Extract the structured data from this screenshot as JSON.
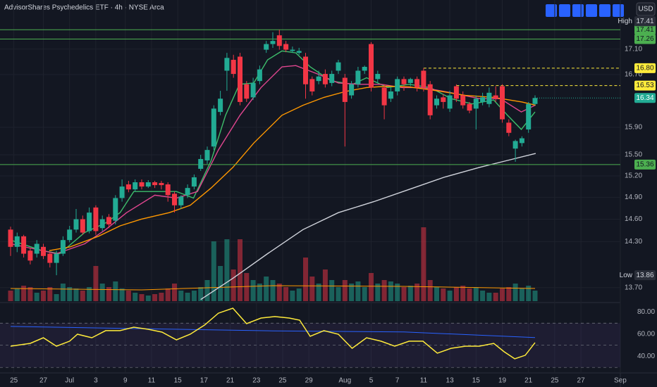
{
  "chart_data": [
    {
      "type": "candlestick",
      "title": "AdvisorShares Psychedelics ETF · 4h · NYSE Arca",
      "currency": "USD",
      "log": true,
      "grid": true,
      "ylim": [
        13.53,
        17.55
      ],
      "yticks": [
        {
          "value": 17.1,
          "label": "17.10"
        },
        {
          "value": 16.7,
          "label": "16.70"
        },
        {
          "value": 15.9,
          "label": "15.90"
        },
        {
          "value": 15.5,
          "label": "15.50"
        },
        {
          "value": 15.2,
          "label": "15.20"
        },
        {
          "value": 14.9,
          "label": "14.90"
        },
        {
          "value": 14.6,
          "label": "14.60"
        },
        {
          "value": 14.3,
          "label": "14.30"
        },
        {
          "value": 13.7,
          "label": "13.70"
        }
      ],
      "time_axis": [
        {
          "label": "25",
          "at": 0.5
        },
        {
          "label": "27",
          "at": 5
        },
        {
          "label": "Jul",
          "at": 9
        },
        {
          "label": "3",
          "at": 13
        },
        {
          "label": "9",
          "at": 17.5
        },
        {
          "label": "11",
          "at": 21.5
        },
        {
          "label": "15",
          "at": 25.5
        },
        {
          "label": "17",
          "at": 29.5
        },
        {
          "label": "21",
          "at": 33.5
        },
        {
          "label": "23",
          "at": 37.5
        },
        {
          "label": "25",
          "at": 41.5
        },
        {
          "label": "29",
          "at": 45.5
        },
        {
          "label": "Aug",
          "at": 51
        },
        {
          "label": "5",
          "at": 55
        },
        {
          "label": "7",
          "at": 59
        },
        {
          "label": "11",
          "at": 63
        },
        {
          "label": "13",
          "at": 67
        },
        {
          "label": "15",
          "at": 71
        },
        {
          "label": "19",
          "at": 75
        },
        {
          "label": "21",
          "at": 79
        },
        {
          "label": "25",
          "at": 83
        },
        {
          "label": "27",
          "at": 87
        },
        {
          "label": "Sep",
          "at": 93
        }
      ],
      "up_color": "#22ab94",
      "down_color": "#f23645",
      "open": [
        14.46,
        14.23,
        14.37,
        14.18,
        14.14,
        14.23,
        14.14,
        14.02,
        14.14,
        14.32,
        14.46,
        14.6,
        14.44,
        14.76,
        14.48,
        14.63,
        14.58,
        14.89,
        15.08,
        15.01,
        15.11,
        15.05,
        15.11,
        15.1,
        15.08,
        14.95,
        14.79,
        14.93,
        15.05,
        15.3,
        15.42,
        15.62,
        16.13,
        16.76,
        16.93,
        16.98,
        16.55,
        16.35,
        16.6,
        17.09,
        17.18,
        17.32,
        17.18,
        17.07,
        17.04,
        16.98,
        16.63,
        16.6,
        16.71,
        16.57,
        16.76,
        16.65,
        16.38,
        16.55,
        16.76,
        17.18,
        16.63,
        16.5,
        16.33,
        16.44,
        16.63,
        16.57,
        16.63,
        16.76,
        16.55,
        16.23,
        16.35,
        16.18,
        16.52,
        16.38,
        16.25,
        16.18,
        16.28,
        16.25,
        16.38,
        16.52,
        15.97,
        15.59,
        15.67,
        15.87,
        16.25
      ],
      "high": [
        14.5,
        14.42,
        14.39,
        14.22,
        14.32,
        14.27,
        14.16,
        14.18,
        14.37,
        14.51,
        14.74,
        14.65,
        14.76,
        14.79,
        14.65,
        14.67,
        14.93,
        15.15,
        15.13,
        15.15,
        15.15,
        15.14,
        15.13,
        15.13,
        15.11,
        14.98,
        14.93,
        15.08,
        15.22,
        15.5,
        15.62,
        16.23,
        16.45,
        17.04,
        17.01,
        17.04,
        16.6,
        16.65,
        16.84,
        17.23,
        17.37,
        17.41,
        17.23,
        17.14,
        17.12,
        17.04,
        16.67,
        16.76,
        16.78,
        16.76,
        16.93,
        16.71,
        16.6,
        16.82,
        16.84,
        17.21,
        16.76,
        16.55,
        16.5,
        16.67,
        16.67,
        16.65,
        16.67,
        16.8,
        16.6,
        16.38,
        16.4,
        16.45,
        16.55,
        16.44,
        16.28,
        16.38,
        16.42,
        16.5,
        16.52,
        16.55,
        16.02,
        15.72,
        15.77,
        16.28,
        16.38
      ],
      "low": [
        14.11,
        14.16,
        14.09,
        14.0,
        14.09,
        14.07,
        13.96,
        13.86,
        14.11,
        14.29,
        14.42,
        14.39,
        14.41,
        14.39,
        14.44,
        14.48,
        14.53,
        14.84,
        14.97,
        14.98,
        15.01,
        15.03,
        15.03,
        15.01,
        14.84,
        14.69,
        14.74,
        14.89,
        15.01,
        15.27,
        15.37,
        15.57,
        16.08,
        16.45,
        16.65,
        16.23,
        16.28,
        16.31,
        16.55,
        17.04,
        17.12,
        17.09,
        17.05,
        17.04,
        17.01,
        16.33,
        16.38,
        16.55,
        16.5,
        16.52,
        16.71,
        15.62,
        16.33,
        16.5,
        16.71,
        16.44,
        16.57,
        16.02,
        16.28,
        16.38,
        16.45,
        16.52,
        16.44,
        16.44,
        16.02,
        16.18,
        16.18,
        16.13,
        16.28,
        16.18,
        16.11,
        15.87,
        16.23,
        16.2,
        16.28,
        15.97,
        15.77,
        15.4,
        15.62,
        15.82,
        16.23
      ],
      "close": [
        14.23,
        14.37,
        14.14,
        14.05,
        14.27,
        14.11,
        14.02,
        14.14,
        14.32,
        14.46,
        14.6,
        14.42,
        14.69,
        14.44,
        14.6,
        14.53,
        14.89,
        15.05,
        15.01,
        15.11,
        15.05,
        15.11,
        15.07,
        15.07,
        14.93,
        14.79,
        14.91,
        15.03,
        15.18,
        15.44,
        15.57,
        16.18,
        16.33,
        16.96,
        16.71,
        16.28,
        16.33,
        16.57,
        16.78,
        17.18,
        17.23,
        17.15,
        17.09,
        17.09,
        17.07,
        16.55,
        16.44,
        16.67,
        16.55,
        16.71,
        16.89,
        16.28,
        16.55,
        16.76,
        16.82,
        16.5,
        16.71,
        16.23,
        16.44,
        16.63,
        16.55,
        16.63,
        16.5,
        16.5,
        16.08,
        16.33,
        16.28,
        16.38,
        16.33,
        16.23,
        16.15,
        16.33,
        16.35,
        16.42,
        16.33,
        16.02,
        15.82,
        15.7,
        15.74,
        16.25,
        16.34
      ],
      "volume": {
        "ylim": [
          0,
          110
        ],
        "up_color": "rgba(34,171,148,0.5)",
        "down_color": "rgba(242,54,69,0.5)",
        "values": [
          15,
          18,
          22,
          20,
          12,
          15,
          20,
          10,
          25,
          20,
          18,
          15,
          20,
          50,
          25,
          20,
          28,
          18,
          15,
          12,
          10,
          8,
          10,
          12,
          18,
          25,
          15,
          12,
          15,
          20,
          30,
          85,
          50,
          88,
          45,
          88,
          40,
          30,
          25,
          35,
          30,
          25,
          20,
          15,
          18,
          62,
          35,
          25,
          45,
          30,
          20,
          30,
          25,
          28,
          20,
          40,
          25,
          30,
          28,
          25,
          20,
          22,
          25,
          105,
          30,
          20,
          18,
          15,
          20,
          22,
          18,
          20,
          15,
          12,
          12,
          18,
          20,
          25,
          18,
          22,
          15
        ],
        "ma": {
          "color": "#ff9800",
          "at": [
            0,
            20,
            40,
            60,
            80
          ],
          "values": [
            18,
            16,
            22,
            21,
            18
          ]
        }
      },
      "lines": [
        {
          "color": "#3dbd6b",
          "at": [
            0,
            4.8,
            7.5,
            11.3,
            14.5,
            16.7,
            18.8,
            25.3,
            27.9,
            30.6,
            32.8,
            34.9,
            37.1,
            39.2,
            41.4,
            43.5,
            45.7,
            48.9,
            52.2,
            54.3,
            57.5,
            60.8,
            64,
            67.2,
            70.4,
            73.7,
            75.8,
            77.9,
            80
          ],
          "values": [
            14.32,
            14.18,
            14.14,
            14.42,
            14.55,
            14.69,
            14.98,
            14.98,
            14.89,
            15.42,
            16.08,
            16.55,
            16.57,
            16.93,
            17.07,
            17.04,
            16.82,
            16.6,
            16.55,
            16.65,
            16.5,
            16.55,
            16.5,
            16.33,
            16.25,
            16.31,
            16.08,
            15.87,
            16.13
          ]
        },
        {
          "color": "#e0468f",
          "at": [
            0,
            7,
            11.3,
            14.5,
            17.7,
            22,
            25.3,
            28.5,
            31.7,
            35,
            38.2,
            41.4,
            43.5,
            46.8,
            50,
            53.2,
            56.5,
            59.7,
            62.9,
            67.2,
            71.5,
            74.7,
            77.9,
            80
          ],
          "values": [
            14.27,
            14.14,
            14.27,
            14.46,
            14.69,
            14.93,
            14.89,
            14.98,
            15.57,
            16.08,
            16.5,
            16.82,
            16.84,
            16.71,
            16.57,
            16.55,
            16.55,
            16.5,
            16.5,
            16.42,
            16.33,
            16.33,
            16.13,
            16.23
          ]
        },
        {
          "color": "#ff9800",
          "at": [
            5.9,
            9.1,
            13.4,
            16.7,
            19.9,
            24.2,
            27.4,
            30.6,
            33.9,
            37.1,
            41.4,
            44.6,
            47.8,
            51.1,
            54.3,
            57.5,
            60.8,
            65.1,
            69.4,
            73.7,
            78,
            80.1
          ],
          "values": [
            14.18,
            14.23,
            14.37,
            14.51,
            14.6,
            14.69,
            14.79,
            15.03,
            15.32,
            15.67,
            16.08,
            16.23,
            16.35,
            16.44,
            16.5,
            16.52,
            16.51,
            16.45,
            16.38,
            16.35,
            16.28,
            16.23
          ]
        },
        {
          "color": "#d1d4dc",
          "at": [
            29,
            33.9,
            39.2,
            44.6,
            50,
            55.4,
            60.8,
            66.1,
            71.5,
            75.8,
            80.1
          ],
          "values": [
            13.55,
            13.82,
            14.14,
            14.46,
            14.69,
            14.84,
            15.01,
            15.18,
            15.32,
            15.42,
            15.52
          ]
        }
      ],
      "levels": [
        {
          "value": 17.41,
          "label": "17.41",
          "color": "#4caf50",
          "style": "solid"
        },
        {
          "value": 17.26,
          "label": "17.26",
          "color": "#4caf50",
          "style": "solid"
        },
        {
          "value": 16.8,
          "label": "16.80",
          "color": "#ffeb3b",
          "style": "dashed",
          "from": 63
        },
        {
          "value": 16.53,
          "label": "16.53",
          "color": "#ffeb3b",
          "style": "dashed",
          "from": 68
        },
        {
          "value": 16.34,
          "label": "16.34",
          "color": "#22ab94",
          "style": "dotted",
          "from": 80
        },
        {
          "value": 15.36,
          "label": "15.36",
          "color": "#4caf50",
          "style": "solid"
        }
      ],
      "extremes": [
        {
          "name": "High",
          "value": 17.41,
          "label": "17.41"
        },
        {
          "name": "Low",
          "value": 13.86,
          "label": "13.86"
        }
      ]
    },
    {
      "type": "line",
      "ylim": [
        26.3,
        87.3
      ],
      "yticks": [
        {
          "value": 80,
          "label": "80.00"
        },
        {
          "value": 60,
          "label": "60.00"
        },
        {
          "value": 40,
          "label": "40.00"
        }
      ],
      "guides": [
        70,
        50,
        30
      ],
      "band": [
        30,
        70
      ],
      "series": [
        {
          "color": "#ffeb3b",
          "at": [
            0,
            3,
            5,
            7,
            9,
            10.2,
            12.4,
            14.5,
            16.7,
            18.8,
            21,
            23.1,
            25.3,
            27.4,
            29.6,
            31.7,
            33.9,
            36,
            38.2,
            40.3,
            42.5,
            44.1,
            45.7,
            47.8,
            50,
            52.1,
            54.3,
            56.5,
            58.6,
            60.8,
            62.9,
            65.1,
            67.2,
            69.4,
            71.5,
            73.7,
            75.3,
            76.9,
            78.5,
            80
          ],
          "values": [
            49.2,
            51.7,
            56.8,
            49.2,
            53.7,
            60,
            56.8,
            63.2,
            63.2,
            66.3,
            64.4,
            61.9,
            54.9,
            60,
            68.3,
            79,
            83.5,
            69.5,
            74.6,
            75.9,
            74.6,
            72.7,
            58.1,
            63.2,
            60,
            47.3,
            56.8,
            53.7,
            49.2,
            53.7,
            53.7,
            42.9,
            47.3,
            49.2,
            49.2,
            51.7,
            44.1,
            37.8,
            41,
            52.4
          ]
        },
        {
          "color": "#2962ff",
          "at": [
            0,
            20,
            40,
            60,
            80
          ],
          "values": [
            67,
            65,
            63,
            62,
            57
          ]
        }
      ]
    }
  ]
}
